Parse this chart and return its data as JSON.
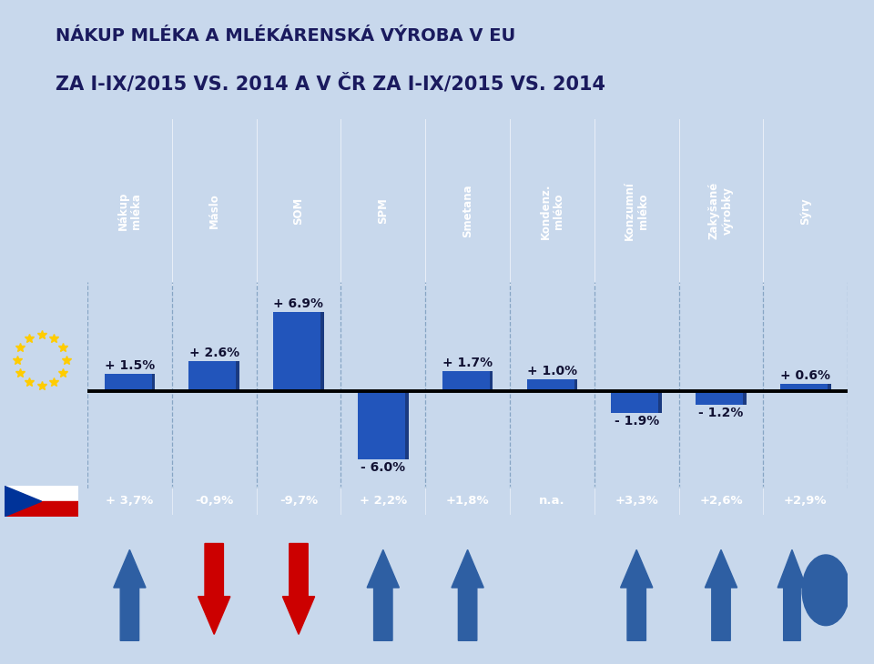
{
  "title_line1": "NÁKUP MLÉKA A MLÉKÁRENSKÁ VÝROBA V EU",
  "title_line2": "ZA I-IX/2015 VS. 2014 A V ČR ZA I-IX/2015 VS. 2014",
  "categories": [
    "Nákup\nmléka",
    "Máslo",
    "SOM",
    "SPM",
    "Smetana",
    "Kondenz.\nmléko",
    "Konzumní\nmléko",
    "Zakyšané\nvýrobky",
    "Sýry"
  ],
  "eu_values": [
    1.5,
    2.6,
    6.9,
    -6.0,
    1.7,
    1.0,
    -1.9,
    -1.2,
    0.6
  ],
  "eu_labels": [
    "+ 1.5%",
    "+ 2.6%",
    "+ 6.9%",
    "- 6.0%",
    "+ 1.7%",
    "+ 1.0%",
    "- 1.9%",
    "- 1.2%",
    "+ 0.6%"
  ],
  "cz_values": [
    "+ 3,7%",
    "-0,9%",
    "-9,7%",
    "+ 2,2%",
    "+1,8%",
    "n.a.",
    "+3,3%",
    "+2,6%",
    "+2,9%"
  ],
  "arrow_types": [
    "up_blue",
    "down_red",
    "down_red",
    "up_blue",
    "up_blue",
    "none",
    "up_blue",
    "up_blue",
    "up_blue_circle"
  ],
  "bar_color": "#2255BB",
  "header_bg": "#1F3E8C",
  "background_outer": "#C8D8EC",
  "background_chart": "#D8E4F0",
  "cz_row_bg": "#1F3E8C",
  "arrow_blue": "#2E5FA3",
  "arrow_red": "#CC0000",
  "ylim_min": -8.5,
  "ylim_max": 9.5,
  "zero_level": 0.0
}
